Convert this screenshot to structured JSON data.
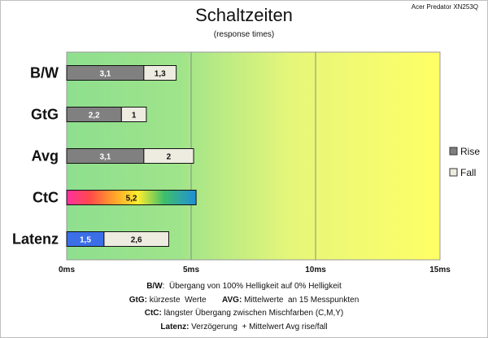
{
  "chart_data": {
    "type": "bar",
    "orientation": "horizontal",
    "stacked": true,
    "title": "Schaltzeiten",
    "subtitle": "(response times)",
    "model": "Acer Predator XN253Q",
    "categories": [
      "B/W",
      "GtG",
      "Avg",
      "CtC",
      "Latenz"
    ],
    "series": [
      {
        "name": "Rise",
        "values": [
          3.1,
          2.2,
          3.1,
          5.2,
          1.5
        ],
        "labels": [
          "3,1",
          "2,2",
          "3,1",
          "5,2",
          "1,5"
        ]
      },
      {
        "name": "Fall",
        "values": [
          1.3,
          1.0,
          2.0,
          null,
          2.6
        ],
        "labels": [
          "1,3",
          "1",
          "2",
          "",
          "2,6"
        ]
      }
    ],
    "xlim": [
      0,
      15
    ],
    "xticks": [
      {
        "value": 0,
        "label": "0ms"
      },
      {
        "value": 5,
        "label": "5ms"
      },
      {
        "value": 10,
        "label": "10ms"
      },
      {
        "value": 15,
        "label": "15ms"
      }
    ],
    "legend_position": "right",
    "colors": {
      "rise": "#808080",
      "fall": "#eeece1",
      "latency_rise": "#3b6fe8",
      "background_start": "#8edf8f",
      "background_end": "#ffff66"
    }
  },
  "notes": [
    {
      "parts": [
        {
          "b": "B/W",
          "t": ":  Übergang von 100% Helligkeit auf 0% Helligkeit"
        }
      ]
    },
    {
      "parts": [
        {
          "b": "GtG:",
          "t": " kürzeste  Werte       "
        },
        {
          "b": "AVG:",
          "t": " Mittelwerte  an 15 Messpunkten"
        }
      ]
    },
    {
      "parts": [
        {
          "b": "CtC:",
          "t": " längster Übergang zwischen Mischfarben (C,M,Y)"
        }
      ]
    },
    {
      "parts": [
        {
          "b": "Latenz:",
          "t": " Verzögerung  + Mittelwert Avg rise/fall"
        }
      ]
    }
  ]
}
